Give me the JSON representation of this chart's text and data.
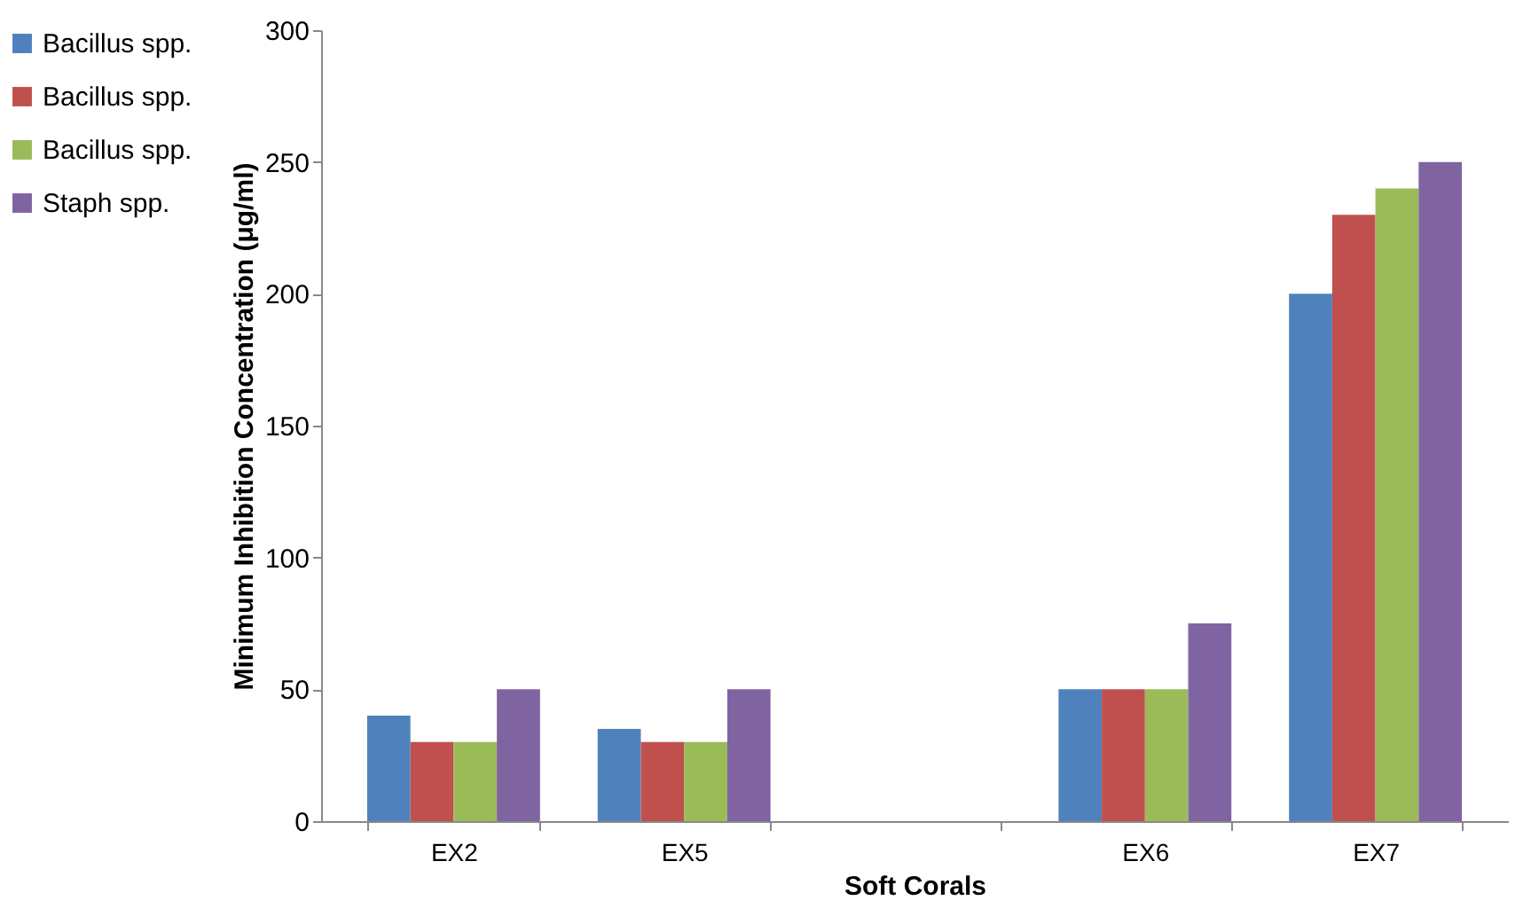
{
  "chart_data": {
    "type": "bar",
    "xlabel": "Soft Corals",
    "ylabel": "Minimum Inhibition Concentration (μg/ml)",
    "categories": [
      "EX2",
      "EX5",
      null,
      "EX6",
      "EX7"
    ],
    "series": [
      {
        "name": "Bacillus spp.",
        "color": "#4f81bd",
        "values": [
          40,
          35,
          null,
          50,
          200
        ]
      },
      {
        "name": "Bacillus spp.",
        "color": "#c0504d",
        "values": [
          30,
          30,
          null,
          50,
          230
        ]
      },
      {
        "name": "Bacillus spp.",
        "color": "#9bbb59",
        "values": [
          30,
          30,
          null,
          50,
          240
        ]
      },
      {
        "name": "Staph spp.",
        "color": "#8064a2",
        "values": [
          50,
          50,
          null,
          75,
          250
        ]
      }
    ],
    "ylim": [
      0,
      300
    ],
    "yticks": [
      0,
      50,
      100,
      150,
      200,
      250,
      300
    ],
    "grid": false,
    "legend": "left"
  }
}
